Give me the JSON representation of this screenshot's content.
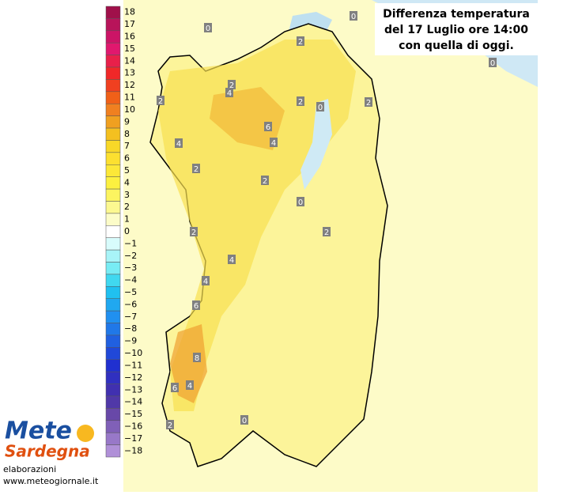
{
  "title": [
    "Differenza temperatura",
    "del 17 Luglio ore 14:00",
    "con quella di oggi."
  ],
  "legend": {
    "labels": [
      "18",
      "17",
      "16",
      "15",
      "14",
      "13",
      "12",
      "11",
      "10",
      "9",
      "8",
      "7",
      "6",
      "5",
      "4",
      "3",
      "2",
      "1",
      "0",
      "−1",
      "−2",
      "−3",
      "−4",
      "−5",
      "−6",
      "−7",
      "−8",
      "−9",
      "−10",
      "−11",
      "−12",
      "−13",
      "−14",
      "−15",
      "−16",
      "−17",
      "−18"
    ],
    "colors": [
      "#a0104a",
      "#b8145a",
      "#cc1466",
      "#e0186e",
      "#e8204a",
      "#f02828",
      "#f04020",
      "#f06018",
      "#f08020",
      "#f0a020",
      "#f4c020",
      "#f8d828",
      "#fce030",
      "#fce838",
      "#fcf040",
      "#fcf460",
      "#fcf890",
      "#fcfcc8",
      "#ffffff",
      "#d8fcfc",
      "#a8f4f8",
      "#78ecf4",
      "#40d8f0",
      "#20c0f0",
      "#20a8f0",
      "#2090f0",
      "#2078e8",
      "#2060e0",
      "#2048d8",
      "#2030d0",
      "#3030c0",
      "#4030b0",
      "#5038a8",
      "#6848a8",
      "#8060b8",
      "#9878c8",
      "#b090d8"
    ]
  },
  "map_labels": [
    "0",
    "0",
    "2",
    "0",
    "2",
    "4",
    "2",
    "2",
    "0",
    "2",
    "6",
    "4",
    "4",
    "2",
    "2",
    "0",
    "2",
    "2",
    "4",
    "4",
    "6",
    "8",
    "6",
    "4",
    "0",
    "2"
  ],
  "logo": {
    "line1": "Mete",
    "line2": "Sardegna"
  },
  "credit": {
    "line1": "elaborazioni",
    "line2": "www.meteogiornale.it"
  }
}
